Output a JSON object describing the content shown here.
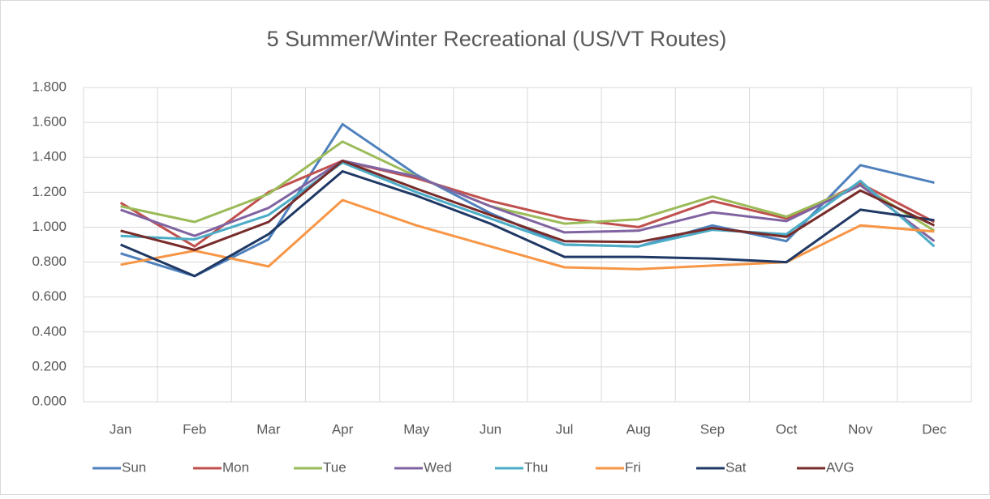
{
  "chart_data": {
    "type": "line",
    "title": "5 Summer/Winter Recreational (US/VT Routes)",
    "categories": [
      "Jan",
      "Feb",
      "Mar",
      "Apr",
      "May",
      "Jun",
      "Jul",
      "Aug",
      "Sep",
      "Oct",
      "Nov",
      "Dec"
    ],
    "series": [
      {
        "name": "Sun",
        "color": "#4f81bd",
        "values": [
          0.85,
          0.72,
          0.93,
          1.59,
          1.3,
          1.08,
          0.9,
          0.89,
          1.01,
          0.92,
          1.355,
          1.255
        ]
      },
      {
        "name": "Mon",
        "color": "#c0504d",
        "values": [
          1.14,
          0.89,
          1.2,
          1.38,
          1.28,
          1.15,
          1.05,
          1.0,
          1.15,
          1.05,
          1.25,
          1.03
        ]
      },
      {
        "name": "Tue",
        "color": "#9bbb59",
        "values": [
          1.12,
          1.03,
          1.19,
          1.49,
          1.29,
          1.12,
          1.02,
          1.045,
          1.175,
          1.06,
          1.24,
          0.98
        ]
      },
      {
        "name": "Wed",
        "color": "#8064a2",
        "values": [
          1.1,
          0.95,
          1.11,
          1.38,
          1.29,
          1.12,
          0.97,
          0.98,
          1.085,
          1.035,
          1.24,
          0.92
        ]
      },
      {
        "name": "Thu",
        "color": "#4bacc6",
        "values": [
          0.95,
          0.93,
          1.07,
          1.37,
          1.2,
          1.05,
          0.9,
          0.89,
          0.985,
          0.96,
          1.265,
          0.89
        ]
      },
      {
        "name": "Fri",
        "color": "#f79646",
        "values": [
          0.785,
          0.865,
          0.775,
          1.155,
          1.01,
          0.89,
          0.77,
          0.76,
          0.78,
          0.8,
          1.01,
          0.975
        ]
      },
      {
        "name": "Sat",
        "color": "#1f3864",
        "values": [
          0.9,
          0.72,
          0.96,
          1.32,
          1.18,
          1.02,
          0.83,
          0.83,
          0.82,
          0.8,
          1.1,
          1.04
        ]
      },
      {
        "name": "AVG",
        "color": "#772c2a",
        "values": [
          0.98,
          0.87,
          1.03,
          1.38,
          1.22,
          1.07,
          0.92,
          0.915,
          0.995,
          0.945,
          1.21,
          1.01
        ]
      }
    ],
    "ylim": [
      0,
      1.8
    ],
    "yticks": [
      {
        "value": 0,
        "label": "0.000"
      },
      {
        "value": 0.2,
        "label": "0.200"
      },
      {
        "value": 0.4,
        "label": "0.400"
      },
      {
        "value": 0.6,
        "label": "0.600"
      },
      {
        "value": 0.8,
        "label": "0.800"
      },
      {
        "value": 1,
        "label": "1.000"
      },
      {
        "value": 1.2,
        "label": "1.200"
      },
      {
        "value": 1.4,
        "label": "1.400"
      },
      {
        "value": 1.6,
        "label": "1.600"
      },
      {
        "value": 1.8,
        "label": "1.800"
      }
    ],
    "grid": true,
    "legend": "bottom"
  }
}
